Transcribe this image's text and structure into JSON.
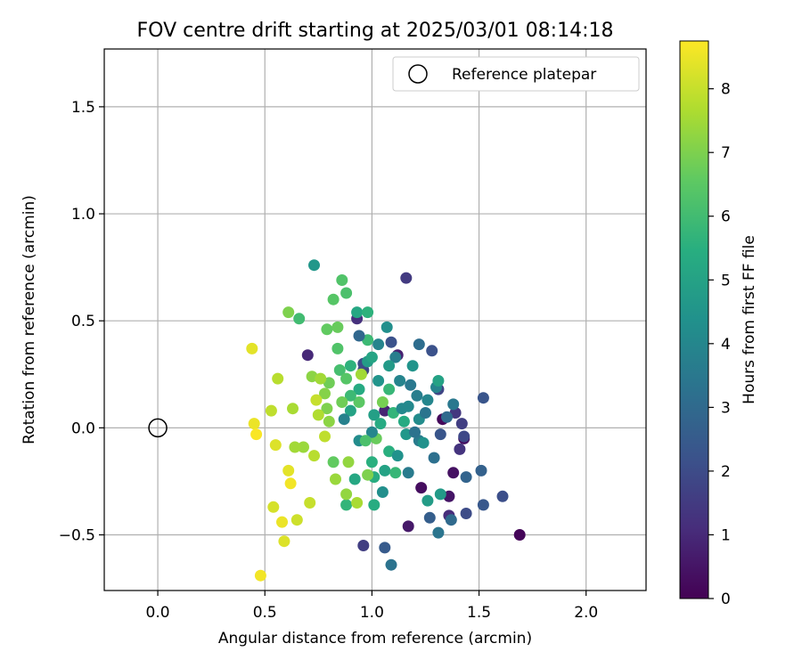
{
  "chart_data": {
    "type": "scatter",
    "title": "FOV centre drift starting at 2025/03/01 08:14:18",
    "xlabel": "Angular distance from reference (arcmin)",
    "ylabel": "Rotation from reference (arcmin)",
    "xlim": [
      -0.25,
      2.28
    ],
    "ylim": [
      -0.76,
      1.77
    ],
    "xticks": [
      0.0,
      0.5,
      1.0,
      1.5,
      2.0
    ],
    "xtick_labels": [
      "0.0",
      "0.5",
      "1.0",
      "1.5",
      "2.0"
    ],
    "yticks": [
      -0.5,
      0.0,
      0.5,
      1.0,
      1.5
    ],
    "ytick_labels": [
      "−0.5",
      "0.0",
      "0.5",
      "1.0",
      "1.5"
    ],
    "grid": true,
    "legend": {
      "label": "Reference platepar",
      "position": "top-right"
    },
    "reference_point": {
      "x": 0.0,
      "y": 0.0
    },
    "colorbar": {
      "label": "Hours from first FF file",
      "range": [
        0,
        8.75
      ],
      "ticks": [
        0,
        1,
        2,
        3,
        4,
        5,
        6,
        7,
        8
      ],
      "tick_labels": [
        "0",
        "1",
        "2",
        "3",
        "4",
        "5",
        "6",
        "7",
        "8"
      ],
      "colormap": "viridis"
    },
    "points": [
      [
        1.69,
        -0.5,
        0.1
      ],
      [
        1.23,
        -0.28,
        0.3
      ],
      [
        1.33,
        0.04,
        0.2
      ],
      [
        1.38,
        -0.21,
        0.4
      ],
      [
        1.36,
        -0.32,
        0.5
      ],
      [
        1.43,
        -0.05,
        0.3
      ],
      [
        1.12,
        0.34,
        0.8
      ],
      [
        0.7,
        0.34,
        1.0
      ],
      [
        1.06,
        0.08,
        0.9
      ],
      [
        1.17,
        -0.46,
        0.6
      ],
      [
        0.93,
        0.51,
        1.2
      ],
      [
        1.16,
        0.7,
        1.5
      ],
      [
        0.96,
        -0.55,
        1.6
      ],
      [
        1.36,
        -0.41,
        1.1
      ],
      [
        0.96,
        0.27,
        1.8
      ],
      [
        1.41,
        -0.1,
        1.3
      ],
      [
        1.42,
        0.02,
        1.6
      ],
      [
        1.39,
        0.07,
        1.4
      ],
      [
        1.44,
        -0.4,
        2.0
      ],
      [
        1.31,
        0.18,
        1.8
      ],
      [
        1.28,
        0.36,
        2.2
      ],
      [
        1.52,
        0.14,
        2.3
      ],
      [
        1.61,
        -0.32,
        2.1
      ],
      [
        1.52,
        -0.36,
        2.4
      ],
      [
        1.43,
        -0.04,
        1.9
      ],
      [
        0.96,
        0.3,
        2.0
      ],
      [
        1.09,
        0.4,
        2.2
      ],
      [
        1.32,
        -0.03,
        2.3
      ],
      [
        1.06,
        -0.56,
        2.5
      ],
      [
        1.27,
        -0.42,
        2.6
      ],
      [
        1.51,
        -0.2,
        2.7
      ],
      [
        1.44,
        -0.23,
        2.8
      ],
      [
        1.37,
        -0.43,
        3.0
      ],
      [
        1.29,
        -0.14,
        3.2
      ],
      [
        1.22,
        0.39,
        3.1
      ],
      [
        1.09,
        -0.64,
        3.3
      ],
      [
        1.31,
        -0.49,
        3.4
      ],
      [
        1.38,
        0.11,
        3.5
      ],
      [
        1.35,
        0.05,
        3.0
      ],
      [
        1.22,
        -0.06,
        3.6
      ],
      [
        1.11,
        0.33,
        3.7
      ],
      [
        1.3,
        0.19,
        3.9
      ],
      [
        1.17,
        0.1,
        4.1
      ],
      [
        1.26,
        0.13,
        4.0
      ],
      [
        1.22,
        0.04,
        4.2
      ],
      [
        1.07,
        0.47,
        4.3
      ],
      [
        1.24,
        -0.07,
        4.4
      ],
      [
        1.19,
        0.29,
        4.5
      ],
      [
        0.73,
        0.76,
        4.6
      ],
      [
        1.32,
        -0.31,
        4.7
      ],
      [
        1.26,
        -0.34,
        4.8
      ],
      [
        1.31,
        0.22,
        5.0
      ],
      [
        0.93,
        0.54,
        5.2
      ],
      [
        1.15,
        0.03,
        5.3
      ],
      [
        1.01,
        -0.23,
        5.4
      ],
      [
        0.98,
        0.54,
        5.6
      ],
      [
        1.0,
        -0.16,
        5.5
      ],
      [
        0.88,
        -0.36,
        5.7
      ],
      [
        0.98,
        0.41,
        5.9
      ],
      [
        1.08,
        0.18,
        5.8
      ],
      [
        0.66,
        0.51,
        6.0
      ],
      [
        0.88,
        0.63,
        6.2
      ],
      [
        0.86,
        0.69,
        6.3
      ],
      [
        0.82,
        0.6,
        6.4
      ],
      [
        0.79,
        0.46,
        6.6
      ],
      [
        0.94,
        0.12,
        6.5
      ],
      [
        1.02,
        -0.05,
        6.7
      ],
      [
        0.8,
        0.21,
        6.8
      ],
      [
        0.61,
        0.54,
        7.0
      ],
      [
        0.72,
        0.24,
        7.2
      ],
      [
        0.78,
        0.16,
        7.1
      ],
      [
        0.68,
        -0.09,
        7.4
      ],
      [
        0.64,
        -0.09,
        7.5
      ],
      [
        0.63,
        0.09,
        7.6
      ],
      [
        0.56,
        0.23,
        7.8
      ],
      [
        0.53,
        0.08,
        7.9
      ],
      [
        0.71,
        -0.35,
        8.0
      ],
      [
        0.65,
        -0.43,
        8.1
      ],
      [
        0.59,
        -0.53,
        8.3
      ],
      [
        0.54,
        -0.37,
        8.2
      ],
      [
        0.45,
        0.02,
        8.5
      ],
      [
        0.44,
        0.37,
        8.4
      ],
      [
        0.48,
        -0.69,
        8.6
      ],
      [
        0.46,
        -0.03,
        8.7
      ],
      [
        0.58,
        -0.44,
        8.5
      ],
      [
        0.61,
        -0.2,
        8.4
      ],
      [
        0.62,
        -0.26,
        8.6
      ],
      [
        0.55,
        -0.08,
        8.3
      ],
      [
        0.74,
        0.13,
        8.0
      ],
      [
        0.78,
        -0.04,
        7.9
      ],
      [
        0.95,
        0.25,
        7.5
      ],
      [
        0.89,
        -0.16,
        7.3
      ],
      [
        0.98,
        -0.22,
        7.0
      ],
      [
        1.05,
        0.12,
        6.9
      ],
      [
        0.9,
        0.08,
        5.0
      ],
      [
        0.98,
        0.31,
        4.8
      ],
      [
        1.03,
        0.22,
        4.5
      ],
      [
        0.94,
        -0.06,
        4.2
      ],
      [
        0.87,
        0.04,
        3.8
      ],
      [
        0.92,
        -0.24,
        5.2
      ],
      [
        1.08,
        -0.11,
        5.5
      ],
      [
        1.13,
        0.22,
        3.9
      ],
      [
        1.16,
        -0.03,
        4.6
      ],
      [
        0.85,
        0.27,
        6.1
      ],
      [
        0.82,
        -0.16,
        6.6
      ],
      [
        0.84,
        0.37,
        6.3
      ],
      [
        1.01,
        0.06,
        4.9
      ],
      [
        0.94,
        0.18,
        5.3
      ],
      [
        1.05,
        -0.3,
        4.3
      ],
      [
        1.0,
        0.33,
        5.1
      ],
      [
        1.1,
        0.07,
        5.7
      ],
      [
        0.9,
        0.15,
        5.9
      ],
      [
        1.18,
        0.2,
        3.5
      ],
      [
        1.2,
        -0.02,
        3.3
      ],
      [
        1.0,
        -0.02,
        4.0
      ],
      [
        0.88,
        0.23,
        6.4
      ],
      [
        0.79,
        0.09,
        7.0
      ],
      [
        0.75,
        0.06,
        7.7
      ],
      [
        0.73,
        -0.13,
        7.8
      ],
      [
        0.83,
        -0.24,
        7.4
      ],
      [
        0.88,
        -0.31,
        7.3
      ],
      [
        0.93,
        -0.35,
        7.6
      ],
      [
        0.97,
        -0.06,
        6.2
      ],
      [
        1.06,
        -0.2,
        5.0
      ],
      [
        1.12,
        -0.13,
        4.4
      ],
      [
        1.03,
        0.39,
        3.9
      ],
      [
        0.94,
        0.43,
        2.9
      ],
      [
        1.11,
        -0.21,
        5.8
      ],
      [
        1.17,
        -0.21,
        3.6
      ],
      [
        1.01,
        -0.36,
        5.4
      ],
      [
        0.86,
        0.12,
        6.8
      ],
      [
        0.8,
        0.03,
        7.2
      ],
      [
        0.76,
        0.23,
        7.5
      ],
      [
        0.84,
        0.47,
        6.7
      ],
      [
        0.9,
        0.29,
        5.6
      ],
      [
        1.04,
        0.02,
        5.3
      ],
      [
        1.08,
        0.29,
        4.7
      ],
      [
        1.14,
        0.09,
        4.1
      ],
      [
        1.25,
        0.07,
        3.4
      ],
      [
        1.21,
        0.15,
        3.7
      ]
    ]
  }
}
